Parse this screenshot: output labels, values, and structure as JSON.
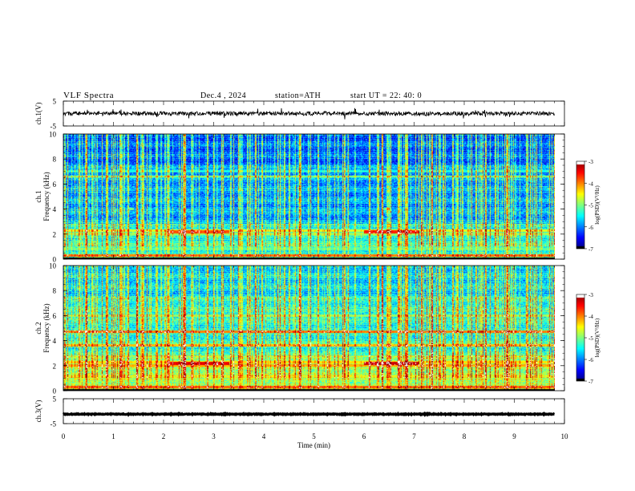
{
  "header": {
    "title": "VLF  Spectra",
    "date": "Dec.4  , 2024",
    "station": "station=ATH",
    "start": "start  UT  =   22: 40: 0"
  },
  "chart_data": {
    "type": "heatmap",
    "xlabel": "Time  (min)",
    "xlim": [
      0,
      10
    ],
    "x_ticks": [
      "0",
      "1",
      "2",
      "3",
      "4",
      "5",
      "6",
      "7",
      "8",
      "9",
      "10"
    ],
    "panels": [
      {
        "id": "ch1-waveform",
        "type": "line",
        "ylabel": "ch.1(V)",
        "ylim": [
          -5,
          5
        ],
        "y_ticks": [
          "5",
          "-5"
        ],
        "data_end_min": 9.8,
        "mean": 0,
        "noise_amplitude": 0.8,
        "color": "#000000"
      },
      {
        "id": "ch1-spectrogram",
        "type": "heatmap",
        "ylabel": "ch.1 Frequency  (kHz)",
        "ylim": [
          0,
          10
        ],
        "y_ticks": [
          "0",
          "2",
          "4",
          "6",
          "8",
          "10"
        ],
        "data_end_min": 9.8,
        "colorbar": {
          "label": "log(PSD)(V²/Hz)",
          "range": [
            -7,
            -3
          ],
          "ticks": [
            "-3",
            "-4",
            "-5",
            "-6",
            "-7"
          ]
        },
        "noise_floor_logpsd": -5.9,
        "bands": [
          {
            "f_khz": 0.3,
            "logpsd": -4.0
          },
          {
            "f_khz": 0.8,
            "logpsd": -5.2
          },
          {
            "f_khz": 1.3,
            "logpsd": -5.6
          },
          {
            "f_khz": 2.0,
            "logpsd": -4.9
          },
          {
            "f_khz": 2.3,
            "logpsd": -4.6
          },
          {
            "f_khz": 4.0,
            "logpsd": -6.0
          },
          {
            "f_khz": 6.6,
            "logpsd": -5.0
          },
          {
            "f_khz": 7.0,
            "logpsd": -5.4
          }
        ],
        "events": [
          {
            "t_start_min": 2.1,
            "t_end_min": 3.3,
            "f_khz": 2.2,
            "logpsd": -3.8
          },
          {
            "t_start_min": 6.0,
            "t_end_min": 7.1,
            "f_khz": 2.2,
            "logpsd": -3.6
          },
          {
            "t_start_min": 1.3,
            "t_end_min": 1.4,
            "f_khz": 4.0,
            "logpsd": -5.0
          },
          {
            "t_start_min": 6.4,
            "t_end_min": 6.5,
            "f_khz": 4.0,
            "logpsd": -5.0
          }
        ]
      },
      {
        "id": "ch2-spectrogram",
        "type": "heatmap",
        "ylabel": "ch.2 Frequency  (kHz)",
        "ylim": [
          0,
          10
        ],
        "y_ticks": [
          "0",
          "2",
          "4",
          "6",
          "8",
          "10"
        ],
        "data_end_min": 9.8,
        "colorbar": {
          "label": "log(PSD)(V²/Hz)",
          "range": [
            -7,
            -3
          ],
          "ticks": [
            "-3",
            "-4",
            "-5",
            "-6",
            "-7"
          ]
        },
        "noise_floor_logpsd": -5.4,
        "bands": [
          {
            "f_khz": 0.3,
            "logpsd": -3.9
          },
          {
            "f_khz": 1.2,
            "logpsd": -4.8
          },
          {
            "f_khz": 2.0,
            "logpsd": -4.2
          },
          {
            "f_khz": 2.3,
            "logpsd": -4.4
          },
          {
            "f_khz": 3.6,
            "logpsd": -4.3
          },
          {
            "f_khz": 4.7,
            "logpsd": -4.0
          },
          {
            "f_khz": 6.0,
            "logpsd": -4.9
          }
        ],
        "events": [
          {
            "t_start_min": 2.1,
            "t_end_min": 3.3,
            "f_khz": 2.2,
            "logpsd": -3.4
          },
          {
            "t_start_min": 6.0,
            "t_end_min": 7.1,
            "f_khz": 2.2,
            "logpsd": -3.3
          }
        ]
      },
      {
        "id": "ch3-waveform",
        "type": "line",
        "ylabel": "ch.3(V)",
        "ylim": [
          -5,
          5
        ],
        "y_ticks": [
          "5",
          "-5"
        ],
        "data_end_min": 9.8,
        "mean": -1.2,
        "noise_amplitude": 0.15,
        "color": "#000000"
      }
    ]
  }
}
